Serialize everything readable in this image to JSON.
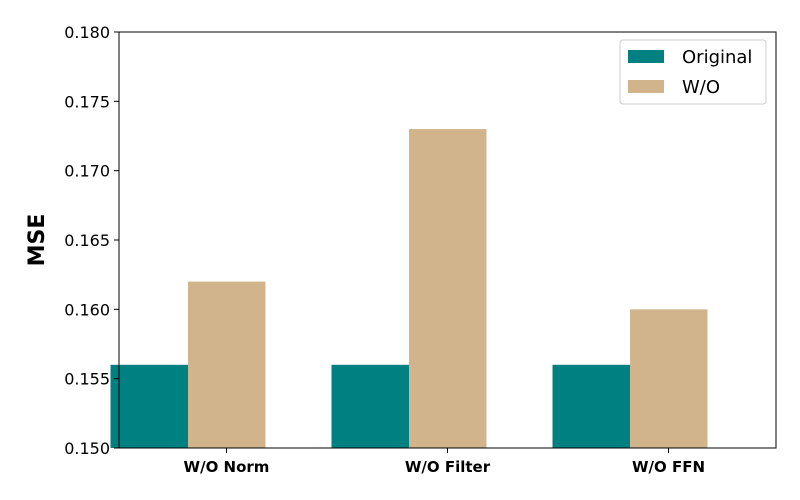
{
  "chart_data": {
    "type": "bar",
    "categories": [
      "W/O Norm",
      "W/O Filter",
      "W/O FFN"
    ],
    "series": [
      {
        "name": "Original",
        "values": [
          0.156,
          0.156,
          0.156
        ],
        "color": "#008080"
      },
      {
        "name": "W/O",
        "values": [
          0.162,
          0.173,
          0.16
        ],
        "color": "#D2B48C"
      }
    ],
    "title": "",
    "xlabel": "",
    "ylabel": "MSE",
    "ylim": [
      0.15,
      0.18
    ],
    "yticks": [
      "0.150",
      "0.155",
      "0.160",
      "0.165",
      "0.170",
      "0.175",
      "0.180"
    ],
    "grid": false,
    "legend_position": "top-right"
  }
}
